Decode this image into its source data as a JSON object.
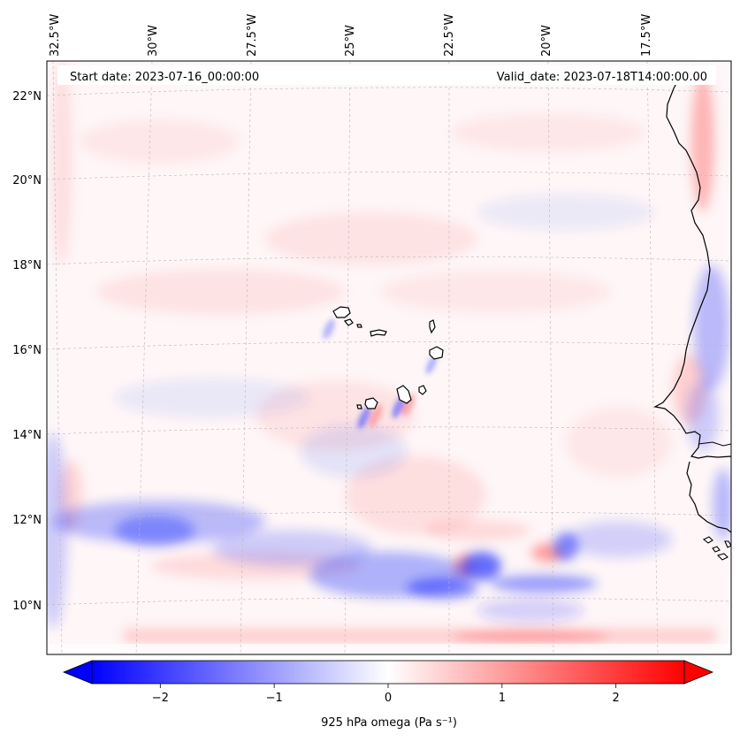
{
  "header": {
    "start_date": "Start date: 2023-07-16_00:00:00",
    "valid_date": "Valid_date: 2023-07-18T14:00:00.00"
  },
  "map": {
    "lon_labels": [
      "32.5°W",
      "30°W",
      "27.5°W",
      "25°W",
      "22.5°W",
      "20°W",
      "17.5°W"
    ],
    "lat_labels": [
      "22°N",
      "20°N",
      "18°N",
      "16°N",
      "14°N",
      "12°N",
      "10°N"
    ],
    "gridlines": "dashed",
    "colors": {
      "negative": "#0000ff",
      "positive": "#ff0000",
      "neutral": "#ffffff",
      "coastline": "#000000"
    }
  },
  "colorbar": {
    "label": "925 hPa omega (Pa s⁻¹)",
    "ticks": [
      "−2",
      "−1",
      "0",
      "1",
      "2"
    ],
    "tick_values": [
      -2,
      -1,
      0,
      1,
      2
    ],
    "range": [
      -2.6,
      2.6
    ],
    "extend": "both"
  }
}
